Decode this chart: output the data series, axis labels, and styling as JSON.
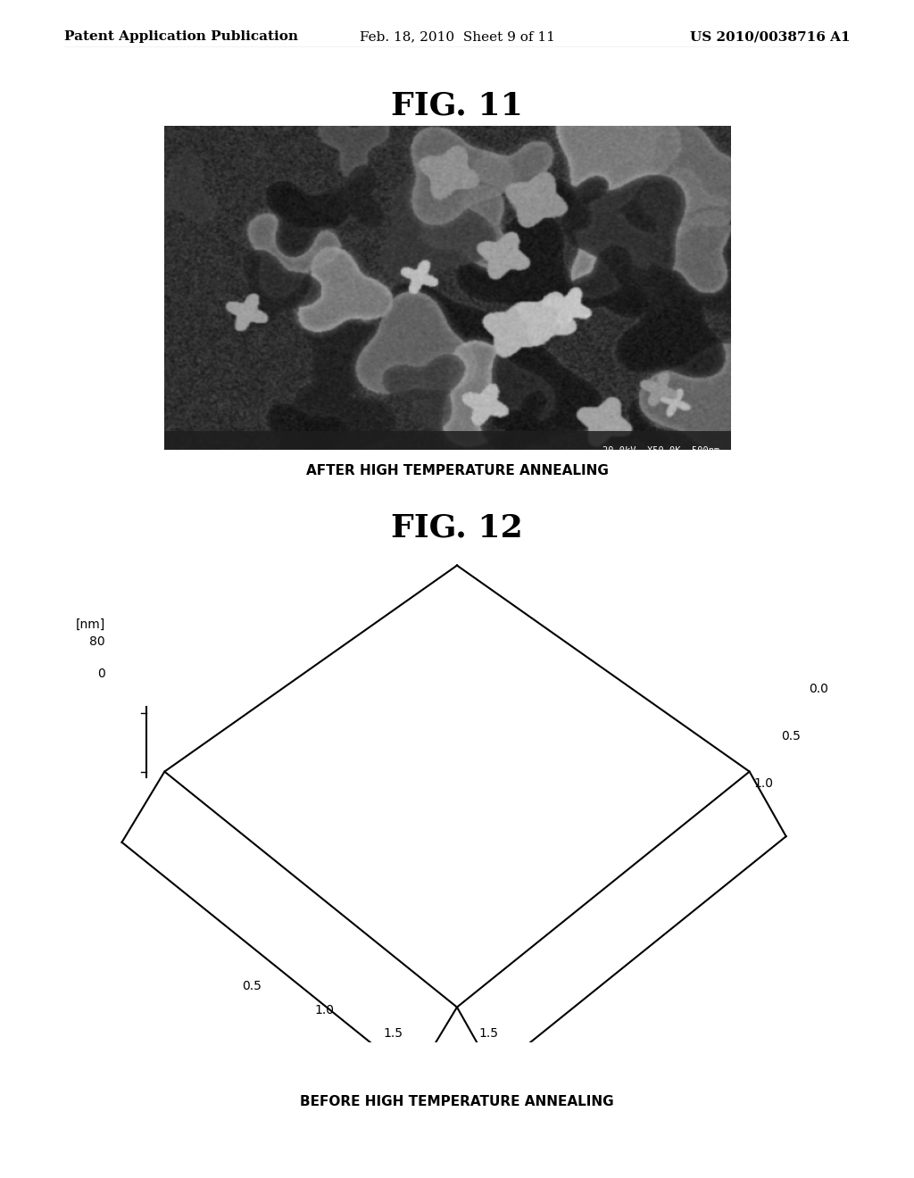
{
  "page_background": "#ffffff",
  "header_left": "Patent Application Publication",
  "header_center": "Feb. 18, 2010  Sheet 9 of 11",
  "header_right": "US 2010/0038716 A1",
  "header_fontsize": 11,
  "fig11_title": "FIG. 11",
  "fig11_title_fontsize": 26,
  "fig11_label": "AFTER HIGH TEMPERATURE ANNEALING",
  "fig11_label_fontsize": 11,
  "fig12_title": "FIG. 12",
  "fig12_title_fontsize": 26,
  "fig12_label": "BEFORE HIGH TEMPERATURE ANNEALING",
  "fig12_label_fontsize": 11,
  "nm_label": "[nm]",
  "nm_80": "80",
  "nm_0": "0",
  "tick_0_0": "0.0",
  "tick_0_5a": "0.5",
  "tick_1_0a": "1.0",
  "tick_0_5b": "0.5",
  "tick_1_0b": "1.0",
  "tick_1_5a": "1.5",
  "tick_1_5b": "1.5"
}
